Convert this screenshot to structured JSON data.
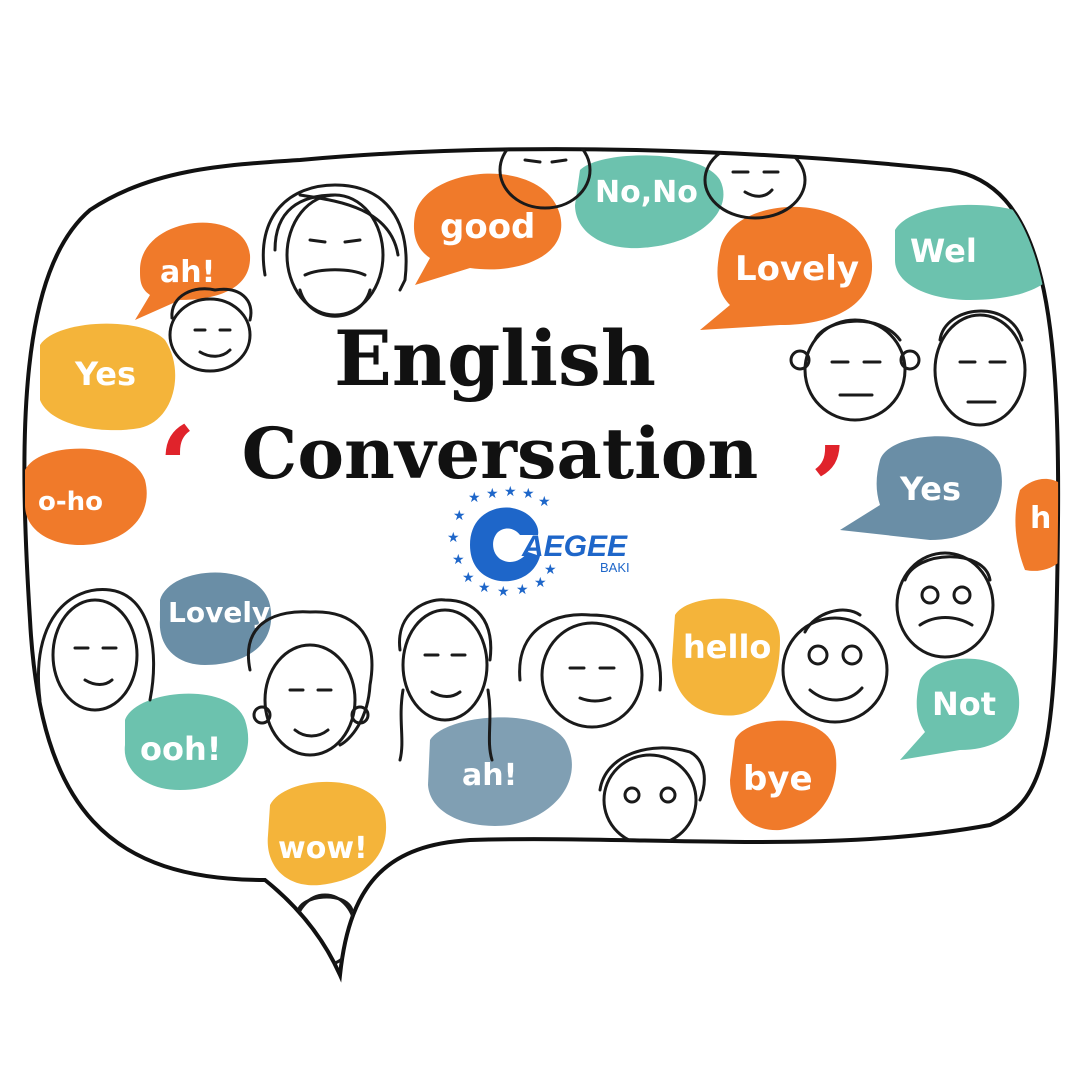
{
  "title": {
    "line1": "English",
    "line2": "Conversation"
  },
  "logo": {
    "name": "AEGEE",
    "sub": "BAKI"
  },
  "bubbles": [
    {
      "id": "ah-top",
      "text": "ah!",
      "color": "orange"
    },
    {
      "id": "good",
      "text": "good",
      "color": "orange"
    },
    {
      "id": "nono",
      "text": "No,No",
      "color": "teal"
    },
    {
      "id": "lovely-top",
      "text": "Lovely",
      "color": "orange"
    },
    {
      "id": "wel",
      "text": "Wel",
      "color": "teal"
    },
    {
      "id": "yes-left",
      "text": "Yes",
      "color": "yellow"
    },
    {
      "id": "oho",
      "text": "o-ho",
      "color": "orange"
    },
    {
      "id": "yes-right",
      "text": "Yes",
      "color": "slate"
    },
    {
      "id": "h-right",
      "text": "h",
      "color": "orange"
    },
    {
      "id": "lovely-bottom",
      "text": "Lovely",
      "color": "slate"
    },
    {
      "id": "hello",
      "text": "hello",
      "color": "yellow"
    },
    {
      "id": "ooh",
      "text": "ooh!",
      "color": "teal"
    },
    {
      "id": "not",
      "text": "Not",
      "color": "teal"
    },
    {
      "id": "ah-bottom",
      "text": "ah!",
      "color": "slate"
    },
    {
      "id": "bye",
      "text": "bye",
      "color": "orange"
    },
    {
      "id": "wow",
      "text": "wow!",
      "color": "yellow"
    }
  ],
  "colors": {
    "orange": "#f07a2a",
    "teal": "#6cc2ae",
    "yellow": "#f4b43a",
    "slate": "#6a8ea6",
    "quote": "#e0232b",
    "logo_blue": "#1e66c9",
    "outline": "#111111"
  }
}
